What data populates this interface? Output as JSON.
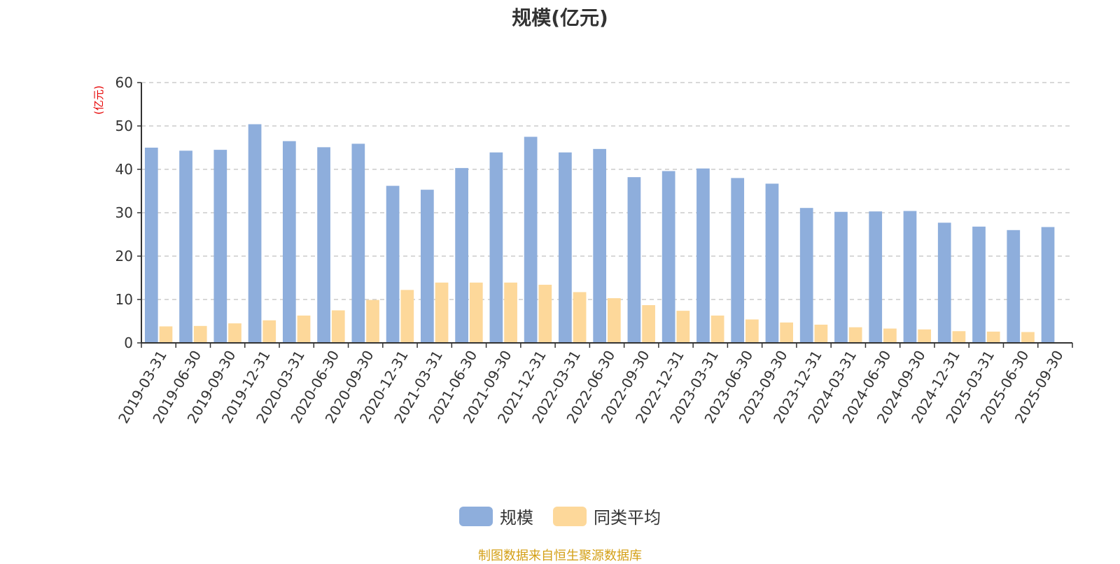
{
  "chart_data": {
    "type": "bar",
    "title": "规模(亿元)",
    "y_unit_label": "(亿元)",
    "ylim": [
      0,
      60
    ],
    "yticks": [
      0,
      10,
      20,
      30,
      40,
      50,
      60
    ],
    "grid": true,
    "legend_position": "bottom-center",
    "categories": [
      "2019-03-31",
      "2019-06-30",
      "2019-09-30",
      "2019-12-31",
      "2020-03-31",
      "2020-06-30",
      "2020-09-30",
      "2020-12-31",
      "2021-03-31",
      "2021-06-30",
      "2021-09-30",
      "2021-12-31",
      "2022-03-31",
      "2022-06-30",
      "2022-09-30",
      "2022-12-31",
      "2023-03-31",
      "2023-06-30",
      "2023-09-30",
      "2023-12-31",
      "2024-03-31",
      "2024-06-30",
      "2024-09-30",
      "2024-12-31",
      "2025-03-31",
      "2025-06-30",
      "2025-09-30"
    ],
    "series": [
      {
        "name": "规模",
        "color": "#8eaedc",
        "values": [
          45.0,
          44.3,
          44.5,
          50.4,
          46.5,
          45.1,
          45.9,
          36.2,
          35.3,
          40.3,
          43.9,
          47.5,
          43.9,
          44.7,
          38.2,
          39.6,
          40.2,
          38.0,
          36.7,
          31.1,
          30.2,
          30.3,
          30.4,
          27.7,
          26.8,
          26.0,
          26.7
        ]
      },
      {
        "name": "同类平均",
        "color": "#fdd89a",
        "values": [
          3.8,
          3.9,
          4.5,
          5.2,
          6.3,
          7.5,
          9.9,
          12.2,
          13.9,
          13.9,
          13.9,
          13.4,
          11.7,
          10.3,
          8.7,
          7.4,
          6.3,
          5.4,
          4.7,
          4.2,
          3.6,
          3.3,
          3.1,
          2.7,
          2.6,
          2.5,
          null
        ]
      }
    ]
  },
  "legend": {
    "items": [
      {
        "label": "规模",
        "color": "#8eaedc"
      },
      {
        "label": "同类平均",
        "color": "#fdd89a"
      }
    ]
  },
  "source_note": "制图数据来自恒生聚源数据库"
}
